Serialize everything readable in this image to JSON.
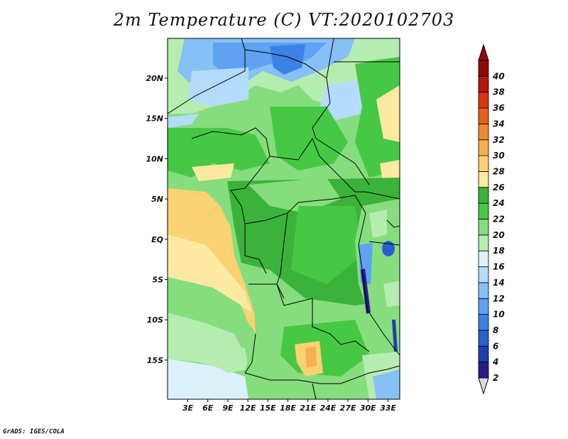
{
  "title": "2m Temperature (C) VT:2020102703",
  "footer": "GrADS: IGES/COLA",
  "map": {
    "lat_labels": [
      "20N",
      "15N",
      "10N",
      "5N",
      "EQ",
      "5S",
      "10S",
      "15S"
    ],
    "lon_labels": [
      "3E",
      "6E",
      "9E",
      "12E",
      "15E",
      "18E",
      "21E",
      "24E",
      "27E",
      "30E",
      "33E"
    ]
  },
  "colorbar": {
    "labels": [
      "2",
      "4",
      "6",
      "8",
      "10",
      "12",
      "14",
      "16",
      "18",
      "20",
      "22",
      "24",
      "26",
      "28",
      "30",
      "32",
      "34",
      "36",
      "38",
      "40"
    ],
    "colors": [
      "#2b1a8a",
      "#1d3fb0",
      "#2a5fd1",
      "#3d80e6",
      "#5ea2f0",
      "#86c0f6",
      "#b3dbfb",
      "#dbf1fc",
      "#b5edb0",
      "#86dd7e",
      "#47c844",
      "#3bb33a",
      "#fde9a2",
      "#fbd272",
      "#f6b04e",
      "#f08a2d",
      "#e85f1c",
      "#d63512",
      "#b81410",
      "#8f0807"
    ],
    "arrow_high_color": "#8f0807",
    "arrow_low_color": "#dcd4f0"
  }
}
